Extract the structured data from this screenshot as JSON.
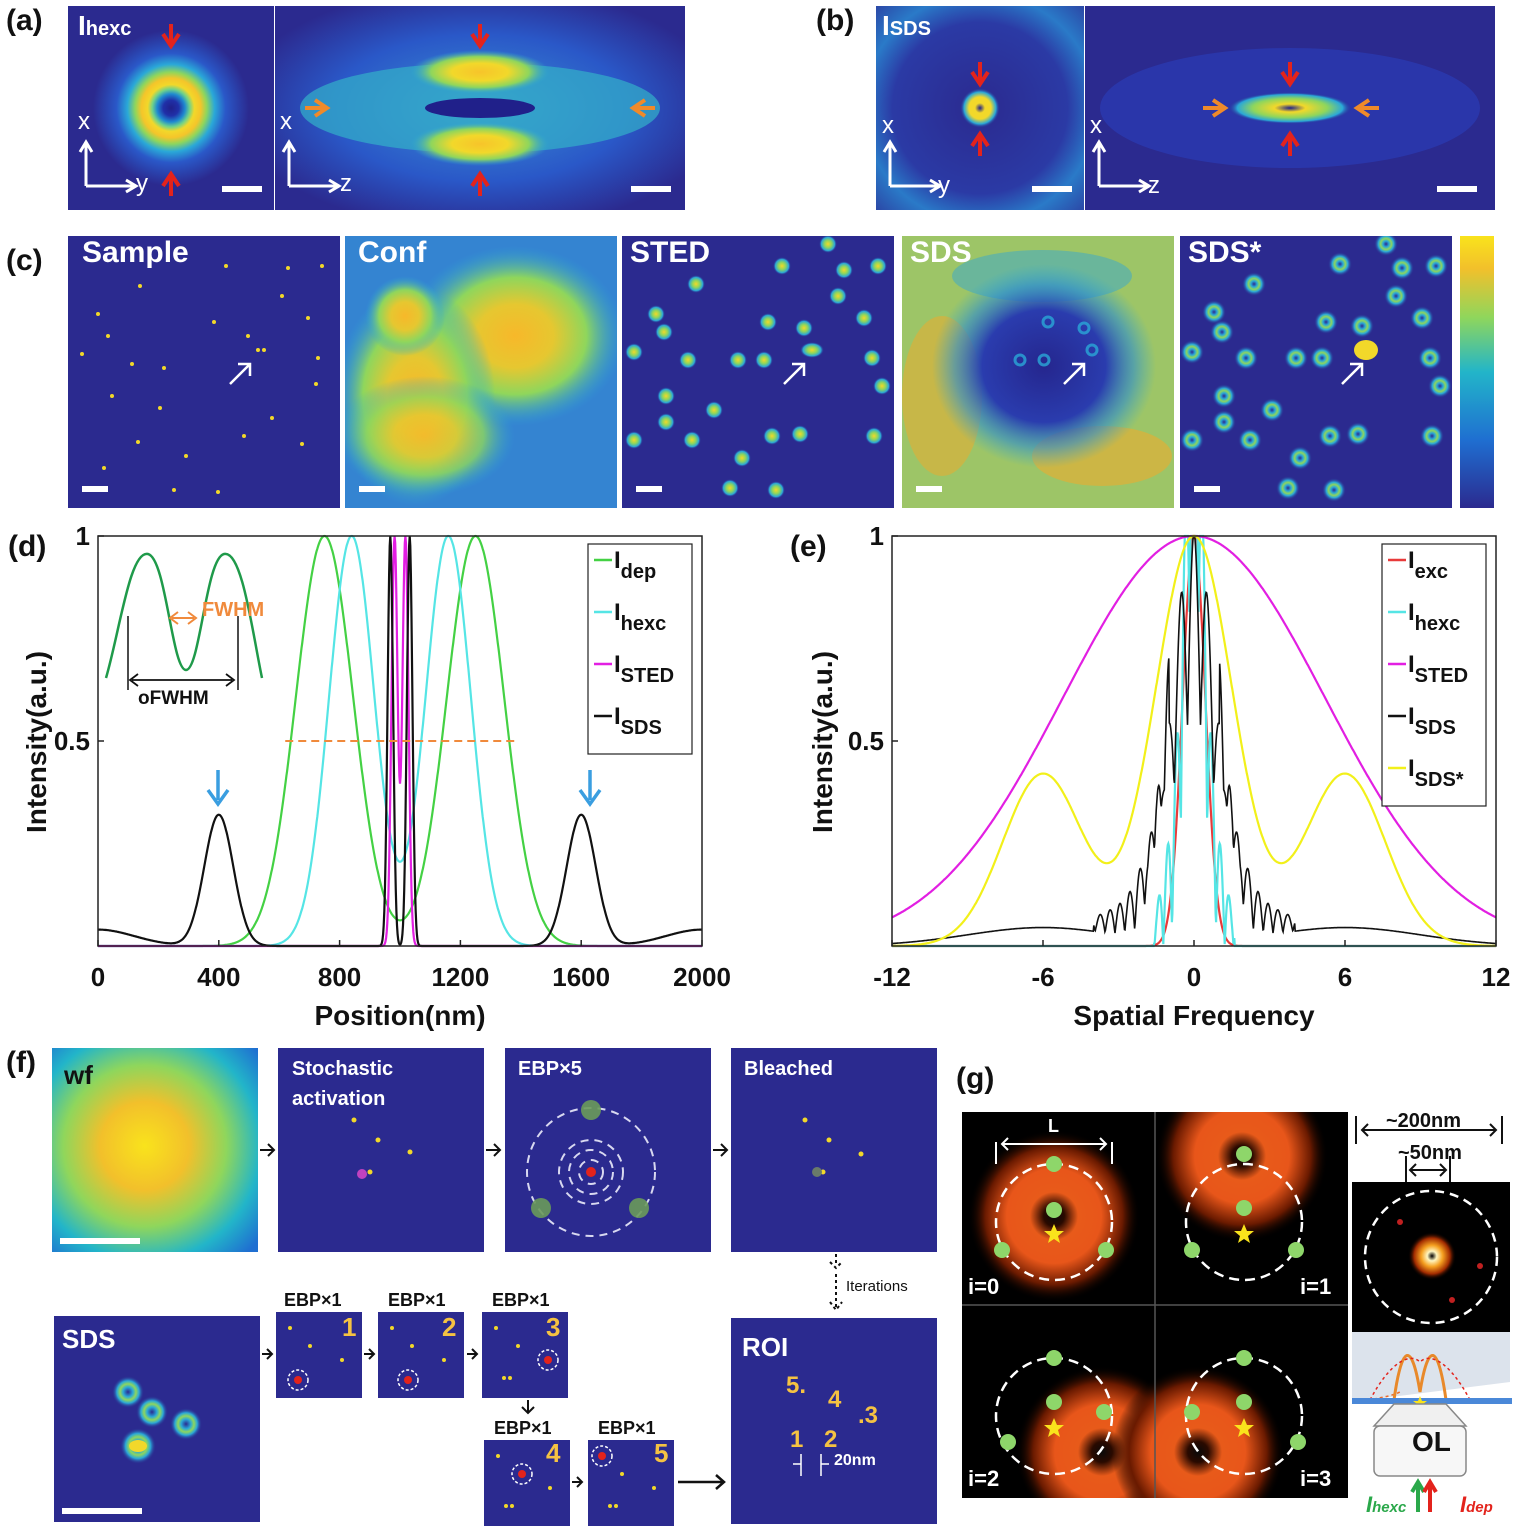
{
  "panels": {
    "a": {
      "letter": "(a)",
      "intensity_main": "I",
      "intensity_sub": "hexc",
      "axis1": [
        "x",
        "y"
      ],
      "axis2": [
        "x",
        "z"
      ]
    },
    "b": {
      "letter": "(b)",
      "intensity_main": "I",
      "intensity_sub": "SDS",
      "axis1": [
        "x",
        "y"
      ],
      "axis2": [
        "x",
        "z"
      ]
    },
    "c": {
      "letter": "(c)",
      "tiles": [
        "Sample",
        "Conf",
        "STED",
        "SDS",
        "SDS*"
      ]
    },
    "d": {
      "letter": "(d)",
      "inset_fwhm": "FWHM",
      "inset_ofwhm": "oFWHM"
    },
    "e": {
      "letter": "(e)"
    },
    "f": {
      "letter": "(f)",
      "tiles": {
        "wf": "wf",
        "stochastic_1": "Stochastic",
        "stochastic_2": "activation",
        "ebp5": "EBP×5",
        "bleached": "Bleached",
        "sds": "SDS",
        "roi": "ROI"
      },
      "iterations": "Iterations",
      "ebp1": "EBP×1",
      "steps": [
        "1",
        "2",
        "3",
        "4",
        "5"
      ],
      "roi_labels": [
        "5.",
        "4",
        ".3",
        "1",
        "2"
      ],
      "roi_distance": "20nm"
    },
    "g": {
      "letter": "(g)",
      "length_label": "L",
      "quad_labels": [
        "i=0",
        "i=1",
        "i=2",
        "i=3"
      ],
      "scale_200": "~200nm",
      "scale_50": "~50nm",
      "objective": "OL",
      "beam_hexc": "I",
      "beam_hexc_sub": "hexc",
      "beam_dep": "I",
      "beam_dep_sub": "dep"
    }
  },
  "chart_data": [
    {
      "type": "line",
      "panel": "d",
      "xlabel": "Position(nm)",
      "ylabel": "Intensity(a.u.)",
      "xlim": [
        0,
        2000
      ],
      "ylim": [
        0,
        1
      ],
      "xticks": [
        "0",
        "400",
        "800",
        "1200",
        "1600",
        "2000"
      ],
      "yticks": [
        "0.5",
        "1"
      ],
      "legend_position": "top-right",
      "series": [
        {
          "name": "I",
          "sub": "dep",
          "color": "#44d144",
          "peaks_x": [
            750,
            1250
          ],
          "peak_y": 1.0
        },
        {
          "name": "I",
          "sub": "hexc",
          "color": "#55e5e5",
          "peaks_x": [
            840,
            1160
          ],
          "peak_y": 1.0
        },
        {
          "name": "I",
          "sub": "STED",
          "color": "#e21fe2",
          "peaks_x": [
            980,
            1020
          ],
          "peak_y": 1.0
        },
        {
          "name": "I",
          "sub": "SDS",
          "color": "#111111",
          "peaks_x": [
            400,
            965,
            1035,
            1600
          ],
          "peak_y": [
            0.32,
            1.0,
            1.0,
            0.32
          ]
        }
      ],
      "reference_line": {
        "y": 0.5,
        "x": [
          620,
          1380
        ],
        "color": "#f08a3c"
      }
    },
    {
      "type": "line",
      "panel": "e",
      "xlabel": "Spatial Frequency",
      "ylabel": "Intensity(a.u.)",
      "xlim": [
        -12,
        12
      ],
      "ylim": [
        0,
        1
      ],
      "xticks": [
        "-12",
        "-6",
        "0",
        "6",
        "12"
      ],
      "yticks": [
        "0.5",
        "1"
      ],
      "legend_position": "top-right",
      "series": [
        {
          "name": "I",
          "sub": "exc",
          "color": "#e83a3a"
        },
        {
          "name": "I",
          "sub": "hexc",
          "color": "#55e5e5"
        },
        {
          "name": "I",
          "sub": "STED",
          "color": "#e21fe2",
          "peak_y": 1.0
        },
        {
          "name": "I",
          "sub": "SDS",
          "color": "#111111",
          "peak_y": 1.0
        },
        {
          "name": "I",
          "sub": "SDS*",
          "color": "#f2f01a",
          "peak_y": 1.0,
          "side_peaks_x": [
            -6,
            6
          ],
          "side_peak_y": 0.42
        }
      ]
    }
  ],
  "colors": {
    "field": "#2b2a8f",
    "cmap": [
      "#2b2a8f",
      "#1f6fd1",
      "#22b5c9",
      "#8fd65c",
      "#f2c02b",
      "#f9e31c"
    ],
    "arrow_red": "#e3231c",
    "arrow_orange": "#ef8a2a"
  }
}
